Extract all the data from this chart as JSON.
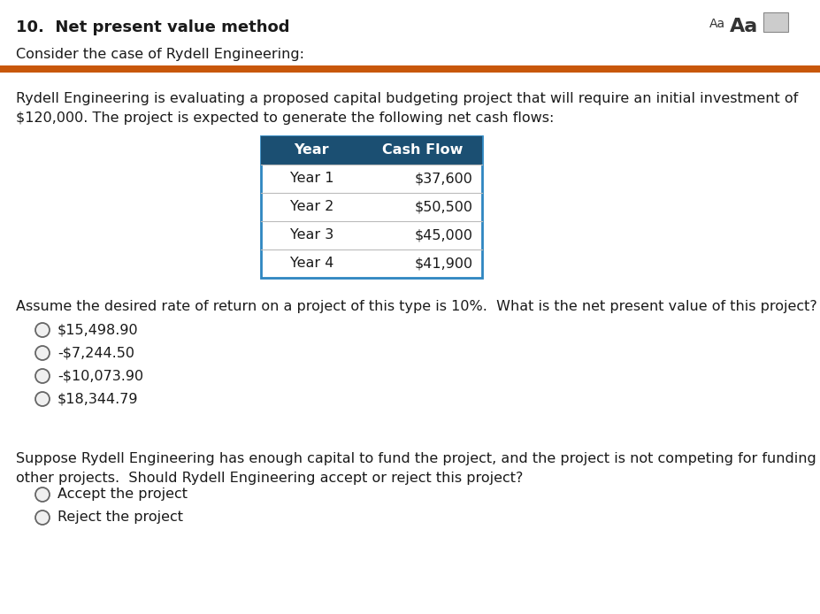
{
  "title": "10.  Net present value method",
  "subtitle": "Consider the case of Rydell Engineering:",
  "aa_small": "Aa",
  "aa_large": "Aa",
  "orange_bar_color": "#C8570A",
  "body_text1": "Rydell Engineering is evaluating a proposed capital budgeting project that will require an initial investment of",
  "body_text2": "$120,000. The project is expected to generate the following net cash flows:",
  "table_header": [
    "Year",
    "Cash Flow"
  ],
  "table_rows": [
    [
      "Year 1",
      "$37,600"
    ],
    [
      "Year 2",
      "$50,500"
    ],
    [
      "Year 3",
      "$45,000"
    ],
    [
      "Year 4",
      "$41,900"
    ]
  ],
  "table_header_bg": "#1B4F72",
  "table_header_color": "#FFFFFF",
  "table_border_color": "#2E86C1",
  "question1": "Assume the desired rate of return on a project of this type is 10%.  What is the net present value of this project?",
  "options1": [
    "$15,498.90",
    "-$7,244.50",
    "-$10,073.90",
    "$18,344.79"
  ],
  "question2_line1": "Suppose Rydell Engineering has enough capital to fund the project, and the project is not competing for funding with",
  "question2_line2": "other projects.  Should Rydell Engineering accept or reject this project?",
  "options2": [
    "Accept the project",
    "Reject the project"
  ],
  "bg_color": "#FFFFFF",
  "text_color": "#1a1a1a",
  "font_size_title": 13,
  "font_size_body": 11.5,
  "font_size_table": 11.5
}
